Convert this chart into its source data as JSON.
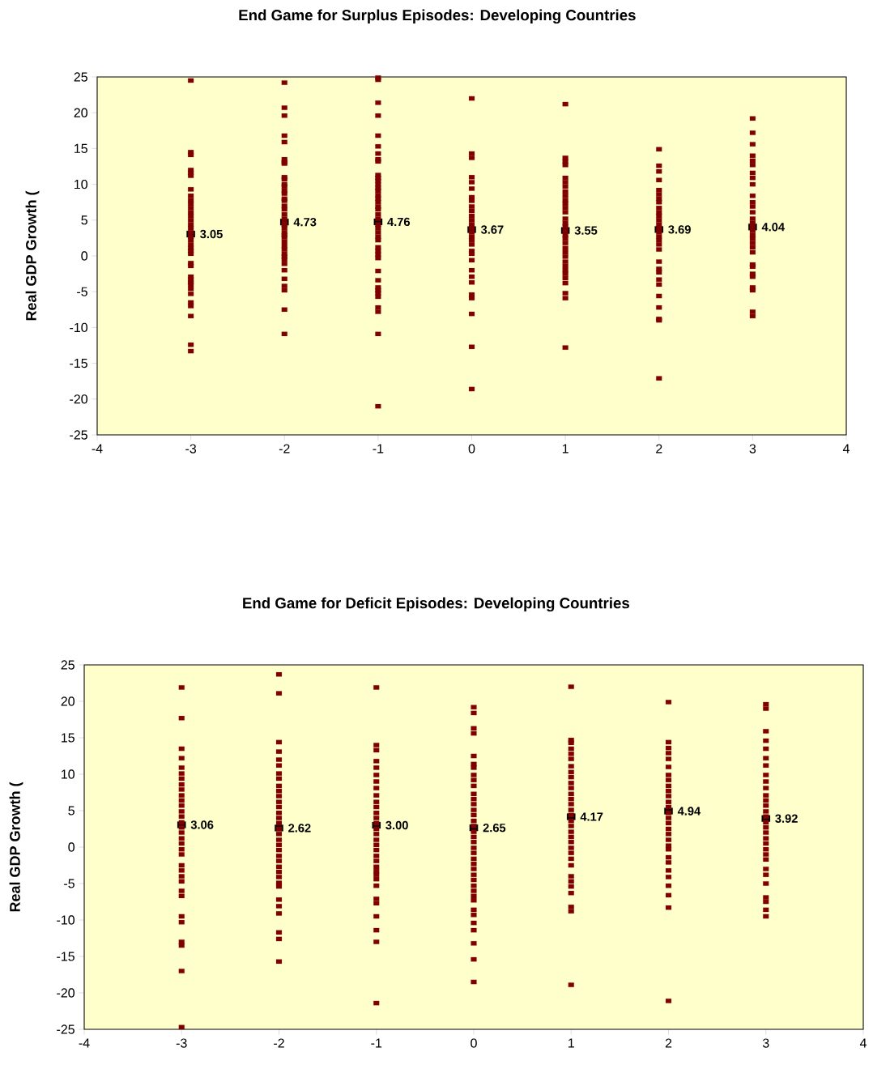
{
  "chart_data": [
    {
      "type": "scatter",
      "marker": "square",
      "title": "End Game for Surplus Episodes: Developing Countries",
      "ylabel": "Real GDP Growth (",
      "xlim": [
        -4,
        4
      ],
      "xticks": [
        -4,
        -3,
        -2,
        -1,
        0,
        1,
        2,
        3,
        4
      ],
      "ylim": [
        -25,
        25
      ],
      "yticks": [
        -25,
        -20,
        -15,
        -10,
        -5,
        0,
        5,
        10,
        15,
        20,
        25
      ],
      "grid": false,
      "series": [
        {
          "color": "#800000",
          "x": [
            -3,
            -3,
            -3,
            -3,
            -3,
            -3,
            -3,
            -3,
            -3,
            -3,
            -3,
            -3,
            -3,
            -3,
            -3,
            -3,
            -3,
            -3,
            -3,
            -3,
            -3,
            -3,
            -3,
            -3,
            -3,
            -3,
            -3,
            -3,
            -3,
            -3,
            -3,
            -3,
            -3,
            -3,
            -3,
            -3,
            -2,
            -2,
            -2,
            -2,
            -2,
            -2,
            -2,
            -2,
            -2,
            -2,
            -2,
            -2,
            -2,
            -2,
            -2,
            -2,
            -2,
            -2,
            -2,
            -2,
            -2,
            -2,
            -2,
            -2,
            -2,
            -2,
            -2,
            -2,
            -2,
            -2,
            -2,
            -2,
            -2,
            -2,
            -2,
            -2,
            -2,
            -2,
            -2,
            -1,
            -1,
            -1,
            -1,
            -1,
            -1,
            -1,
            -1,
            -1,
            -1,
            -1,
            -1,
            -1,
            -1,
            -1,
            -1,
            -1,
            -1,
            -1,
            -1,
            -1,
            -1,
            -1,
            -1,
            -1,
            -1,
            -1,
            -1,
            -1,
            -1,
            -1,
            -1,
            -1,
            -1,
            -1,
            -1,
            -1,
            -1,
            -1,
            -1,
            -1,
            0,
            0,
            0,
            0,
            0,
            0,
            0,
            0,
            0,
            0,
            0,
            0,
            0,
            0,
            0,
            0,
            0,
            0,
            0,
            0,
            0,
            0,
            0,
            0,
            0,
            0,
            0,
            0,
            0,
            1,
            1,
            1,
            1,
            1,
            1,
            1,
            1,
            1,
            1,
            1,
            1,
            1,
            1,
            1,
            1,
            1,
            1,
            1,
            1,
            1,
            1,
            1,
            1,
            1,
            1,
            1,
            1,
            1,
            1,
            1,
            1,
            2,
            2,
            2,
            2,
            2,
            2,
            2,
            2,
            2,
            2,
            2,
            2,
            2,
            2,
            2,
            2,
            2,
            2,
            2,
            2,
            2,
            2,
            2,
            2,
            2,
            2,
            2,
            2,
            2,
            3,
            3,
            3,
            3,
            3,
            3,
            3,
            3,
            3,
            3,
            3,
            3,
            3,
            3,
            3,
            3,
            3,
            3,
            3,
            3,
            3,
            3,
            3,
            3,
            3,
            3,
            3,
            3,
            3,
            3
          ],
          "values": [
            24.5,
            14.5,
            14.1,
            12.0,
            11.6,
            11.2,
            9.3,
            8.4,
            7.8,
            7.3,
            6.7,
            6.1,
            5.6,
            5.0,
            4.4,
            3.9,
            3.3,
            2.7,
            2.2,
            1.6,
            1.1,
            0.7,
            0.3,
            -1.0,
            -1.4,
            -2.9,
            -3.3,
            -3.7,
            -4.0,
            -4.6,
            -5.3,
            -6.5,
            -7.0,
            -8.4,
            -12.4,
            -13.3,
            24.2,
            20.7,
            19.6,
            16.8,
            15.9,
            13.5,
            13.1,
            12.9,
            11.0,
            10.7,
            10.0,
            9.7,
            9.1,
            8.7,
            8.0,
            7.7,
            7.0,
            6.5,
            5.8,
            5.2,
            4.6,
            4.3,
            3.9,
            3.3,
            2.9,
            2.6,
            2.0,
            1.4,
            0.9,
            0.3,
            -0.1,
            -0.5,
            -1.1,
            -2.0,
            -3.2,
            -4.2,
            -4.8,
            -7.5,
            -10.9,
            24.9,
            24.6,
            21.4,
            19.6,
            16.8,
            15.3,
            14.3,
            13.5,
            13.2,
            11.3,
            10.9,
            10.5,
            10.0,
            9.5,
            9.1,
            8.5,
            8.0,
            7.5,
            6.9,
            6.5,
            5.8,
            5.2,
            4.4,
            3.9,
            3.3,
            2.7,
            2.2,
            1.2,
            0.7,
            0.2,
            -0.3,
            -2.1,
            -3.4,
            -4.4,
            -4.8,
            -5.2,
            -5.7,
            -7.2,
            -7.8,
            -10.9,
            -21.0,
            22.0,
            14.3,
            13.7,
            11.0,
            10.3,
            9.4,
            8.2,
            7.7,
            6.9,
            6.3,
            5.6,
            5.0,
            4.4,
            3.9,
            3.3,
            2.7,
            2.2,
            1.6,
            0.7,
            0.3,
            -0.6,
            -2.0,
            -2.9,
            -3.7,
            -5.4,
            -5.9,
            -8.1,
            -12.7,
            -18.6,
            21.2,
            13.7,
            13.2,
            12.7,
            10.9,
            10.3,
            9.7,
            9.0,
            8.4,
            7.8,
            7.3,
            6.7,
            6.1,
            5.2,
            4.6,
            4.1,
            3.5,
            2.9,
            2.4,
            1.8,
            1.1,
            0.5,
            -0.1,
            -0.8,
            -1.4,
            -2.0,
            -2.5,
            -3.1,
            -3.8,
            -5.2,
            -5.9,
            -12.8,
            14.9,
            12.6,
            11.8,
            10.6,
            9.2,
            8.6,
            8.0,
            7.5,
            6.7,
            6.1,
            5.6,
            5.0,
            4.4,
            3.9,
            3.3,
            2.7,
            2.2,
            1.6,
            0.9,
            -0.8,
            -1.8,
            -2.3,
            -3.3,
            -4.0,
            -5.6,
            -7.2,
            -8.8,
            -9.0,
            -17.1,
            19.2,
            17.2,
            15.6,
            14.0,
            13.3,
            12.7,
            11.6,
            10.9,
            10.0,
            8.4,
            7.5,
            6.9,
            6.1,
            5.2,
            4.6,
            4.1,
            3.5,
            2.9,
            2.4,
            1.8,
            1.2,
            0.5,
            -1.2,
            -1.5,
            -2.5,
            -2.9,
            -4.4,
            -4.8,
            -7.8,
            -8.4
          ]
        },
        {
          "color": "#000000",
          "x": [
            -3,
            -2,
            -1,
            0,
            1,
            2,
            3
          ],
          "values": [
            3.05,
            4.73,
            4.76,
            3.67,
            3.55,
            3.69,
            4.04
          ],
          "value_labels": [
            "3.05",
            "4.73",
            "4.76",
            "3.67",
            "3.55",
            "3.69",
            "4.04"
          ]
        }
      ]
    },
    {
      "type": "scatter",
      "marker": "square",
      "title": "End Game for Deficit Episodes: Developing Countries",
      "ylabel": "Real GDP Growth (",
      "xlim": [
        -4,
        4
      ],
      "xticks": [
        -4,
        -3,
        -2,
        -1,
        0,
        1,
        2,
        3,
        4
      ],
      "ylim": [
        -25,
        25
      ],
      "yticks": [
        -25,
        -20,
        -15,
        -10,
        -5,
        0,
        5,
        10,
        15,
        20,
        25
      ],
      "grid": false,
      "series": [
        {
          "color": "#800000",
          "x": [
            -3,
            -3,
            -3,
            -3,
            -3,
            -3,
            -3,
            -3,
            -3,
            -3,
            -3,
            -3,
            -3,
            -3,
            -3,
            -3,
            -3,
            -3,
            -3,
            -3,
            -3,
            -3,
            -3,
            -3,
            -3,
            -3,
            -3,
            -3,
            -3,
            -3,
            -3,
            -3,
            -3,
            -2,
            -2,
            -2,
            -2,
            -2,
            -2,
            -2,
            -2,
            -2,
            -2,
            -2,
            -2,
            -2,
            -2,
            -2,
            -2,
            -2,
            -2,
            -2,
            -2,
            -2,
            -2,
            -2,
            -2,
            -2,
            -2,
            -2,
            -2,
            -2,
            -2,
            -2,
            -2,
            -2,
            -2,
            -1,
            -1,
            -1,
            -1,
            -1,
            -1,
            -1,
            -1,
            -1,
            -1,
            -1,
            -1,
            -1,
            -1,
            -1,
            -1,
            -1,
            -1,
            -1,
            -1,
            -1,
            -1,
            -1,
            -1,
            -1,
            -1,
            -1,
            -1,
            -1,
            -1,
            -1,
            -1,
            0,
            0,
            0,
            0,
            0,
            0,
            0,
            0,
            0,
            0,
            0,
            0,
            0,
            0,
            0,
            0,
            0,
            0,
            0,
            0,
            0,
            0,
            0,
            0,
            0,
            0,
            0,
            0,
            0,
            0,
            0,
            0,
            0,
            0,
            0,
            0,
            0,
            0,
            1,
            1,
            1,
            1,
            1,
            1,
            1,
            1,
            1,
            1,
            1,
            1,
            1,
            1,
            1,
            1,
            1,
            1,
            1,
            1,
            1,
            1,
            1,
            1,
            1,
            1,
            1,
            1,
            1,
            1,
            1,
            1,
            2,
            2,
            2,
            2,
            2,
            2,
            2,
            2,
            2,
            2,
            2,
            2,
            2,
            2,
            2,
            2,
            2,
            2,
            2,
            2,
            2,
            2,
            2,
            2,
            2,
            2,
            2,
            2,
            2,
            3,
            3,
            3,
            3,
            3,
            3,
            3,
            3,
            3,
            3,
            3,
            3,
            3,
            3,
            3,
            3,
            3,
            3,
            3,
            3,
            3,
            3,
            3,
            3,
            3,
            3,
            3,
            3,
            3,
            3
          ],
          "values": [
            21.9,
            17.7,
            13.5,
            12.2,
            10.9,
            10.1,
            9.4,
            8.6,
            7.9,
            7.1,
            6.4,
            5.7,
            4.9,
            4.2,
            3.4,
            2.7,
            2.0,
            1.2,
            0.5,
            -0.3,
            -1.0,
            -2.5,
            -3.2,
            -4.0,
            -4.7,
            -6.0,
            -6.7,
            -9.5,
            -10.3,
            -13.0,
            -13.5,
            -17.0,
            -24.7,
            23.7,
            21.1,
            14.4,
            13.1,
            12.0,
            11.2,
            10.1,
            9.4,
            8.4,
            7.7,
            7.0,
            6.2,
            5.5,
            4.7,
            4.0,
            3.3,
            2.5,
            1.8,
            1.0,
            0.3,
            -0.4,
            -1.2,
            -1.9,
            -2.7,
            -3.4,
            -4.1,
            -4.9,
            -5.4,
            -7.2,
            -8.1,
            -9.1,
            -11.7,
            -12.6,
            -15.7,
            21.9,
            14.0,
            13.3,
            11.8,
            10.9,
            9.9,
            9.0,
            8.1,
            7.1,
            6.2,
            5.5,
            4.7,
            4.0,
            3.3,
            2.5,
            1.8,
            1.0,
            0.3,
            -0.4,
            -1.2,
            -1.9,
            -2.7,
            -3.3,
            -3.8,
            -4.4,
            -5.3,
            -7.1,
            -7.7,
            -9.5,
            -11.4,
            -13.0,
            -21.4,
            19.2,
            18.4,
            16.3,
            15.6,
            12.5,
            11.4,
            10.9,
            9.9,
            9.2,
            8.4,
            7.3,
            6.6,
            5.9,
            5.1,
            4.4,
            3.6,
            2.9,
            2.1,
            1.4,
            0.7,
            -0.1,
            -0.8,
            -1.6,
            -2.3,
            -3.0,
            -3.8,
            -4.5,
            -5.3,
            -6.0,
            -6.7,
            -7.3,
            -8.6,
            -9.3,
            -10.4,
            -11.4,
            -13.2,
            -15.4,
            -18.5,
            22.0,
            14.7,
            14.3,
            13.5,
            12.8,
            12.1,
            11.1,
            10.3,
            9.6,
            8.8,
            8.1,
            7.3,
            6.6,
            5.9,
            5.1,
            4.4,
            3.6,
            2.9,
            2.1,
            1.4,
            0.7,
            -0.1,
            -0.8,
            -1.6,
            -2.5,
            -4.0,
            -4.7,
            -5.4,
            -6.3,
            -8.2,
            -8.8,
            -18.9,
            19.9,
            14.4,
            13.6,
            12.9,
            12.1,
            11.0,
            9.9,
            9.2,
            8.4,
            7.7,
            7.0,
            6.2,
            5.5,
            4.7,
            4.0,
            3.3,
            2.5,
            1.8,
            1.0,
            0.2,
            -0.3,
            -1.4,
            -2.1,
            -3.2,
            -4.1,
            -5.3,
            -6.6,
            -8.3,
            -21.1,
            19.6,
            19.0,
            15.9,
            14.6,
            13.5,
            12.2,
            11.2,
            9.9,
            9.0,
            8.1,
            7.1,
            6.4,
            5.7,
            4.9,
            4.2,
            3.4,
            2.7,
            2.0,
            1.2,
            0.5,
            -0.3,
            -1.0,
            -1.7,
            -3.0,
            -3.8,
            -5.0,
            -6.9,
            -7.5,
            -8.6,
            -9.5
          ]
        },
        {
          "color": "#000000",
          "x": [
            -3,
            -2,
            -1,
            0,
            1,
            2,
            3
          ],
          "values": [
            3.06,
            2.62,
            3.0,
            2.65,
            4.17,
            4.94,
            3.92
          ],
          "value_labels": [
            "3.06",
            "2.62",
            "3.00",
            "2.65",
            "4.17",
            "4.94",
            "3.92"
          ]
        }
      ]
    }
  ]
}
